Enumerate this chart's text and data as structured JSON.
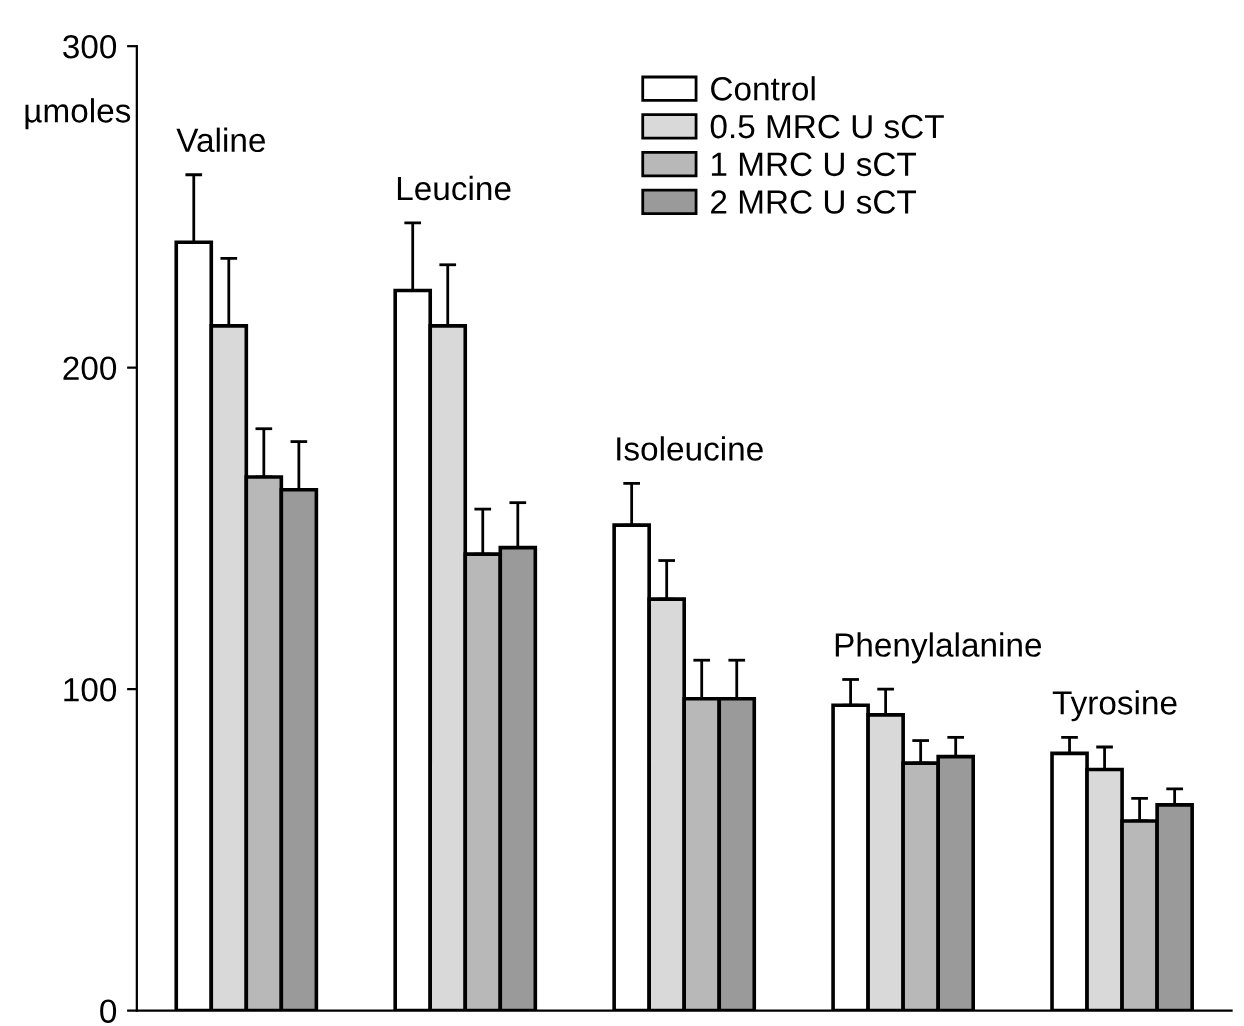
{
  "chart_data": {
    "type": "bar",
    "ylabel": "µmoles",
    "categories": [
      "Valine",
      "Leucine",
      "Isoleucine",
      "Phenylalanine",
      "Tyrosine"
    ],
    "series": [
      {
        "name": "Control",
        "color": "#ffffff",
        "values": [
          239,
          224,
          151,
          95,
          80
        ],
        "errors": [
          [
            239,
            260
          ],
          [
            224,
            245
          ],
          [
            151,
            164
          ],
          [
            95,
            103
          ],
          [
            80,
            85
          ]
        ]
      },
      {
        "name": "0.5 MRC U sCT",
        "color": "#d9d9d9",
        "values": [
          213,
          213,
          128,
          92,
          75
        ],
        "errors": [
          [
            213,
            234
          ],
          [
            213,
            232
          ],
          [
            128,
            140
          ],
          [
            92,
            100
          ],
          [
            75,
            82
          ]
        ]
      },
      {
        "name": "1 MRC U sCT",
        "color": "#b8b8b8",
        "values": [
          166,
          142,
          97,
          77,
          59
        ],
        "errors": [
          [
            166,
            181
          ],
          [
            142,
            156
          ],
          [
            97,
            109
          ],
          [
            77,
            84
          ],
          [
            59,
            66
          ]
        ]
      },
      {
        "name": "2 MRC U sCT",
        "color": "#9a9a9a",
        "values": [
          162,
          144,
          97,
          79,
          64
        ],
        "errors": [
          [
            162,
            177
          ],
          [
            144,
            158
          ],
          [
            97,
            109
          ],
          [
            79,
            85
          ],
          [
            64,
            69
          ]
        ]
      }
    ],
    "ylim": [
      0,
      300
    ],
    "yticks": [
      0,
      100,
      200,
      300
    ],
    "tick_labels": "y",
    "grid": false,
    "legend": "top"
  }
}
